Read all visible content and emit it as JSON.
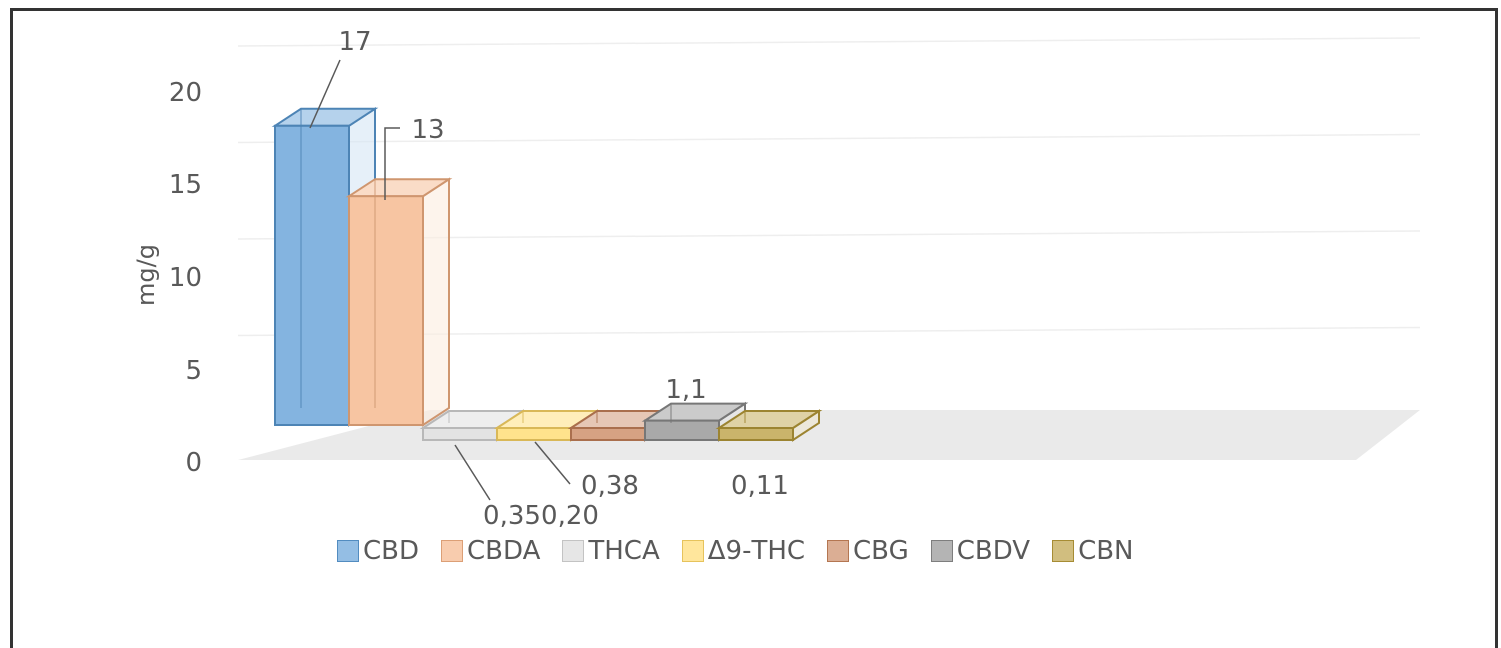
{
  "chart_data": {
    "type": "bar",
    "variant": "3d-column",
    "ylabel": "mg/g",
    "ylim": [
      0,
      20
    ],
    "yticks": [
      "0",
      "5",
      "10",
      "15",
      "20"
    ],
    "grid": true,
    "legend_position": "bottom",
    "categories": [
      "CBD",
      "CBDA",
      "THCA",
      "Δ9-THC",
      "CBG",
      "CBDV",
      "CBN"
    ],
    "values": [
      17,
      13,
      0.35,
      0.2,
      0.38,
      1.1,
      0.11
    ],
    "data_labels": [
      "17",
      "13",
      "0,35",
      "0,20",
      "0,38",
      "1,1",
      "0,11"
    ],
    "colors": [
      "#5B9BD5",
      "#F4B183",
      "#D9D9D9",
      "#FFD966",
      "#C8835A",
      "#8C8C8C",
      "#B89B3A"
    ]
  }
}
